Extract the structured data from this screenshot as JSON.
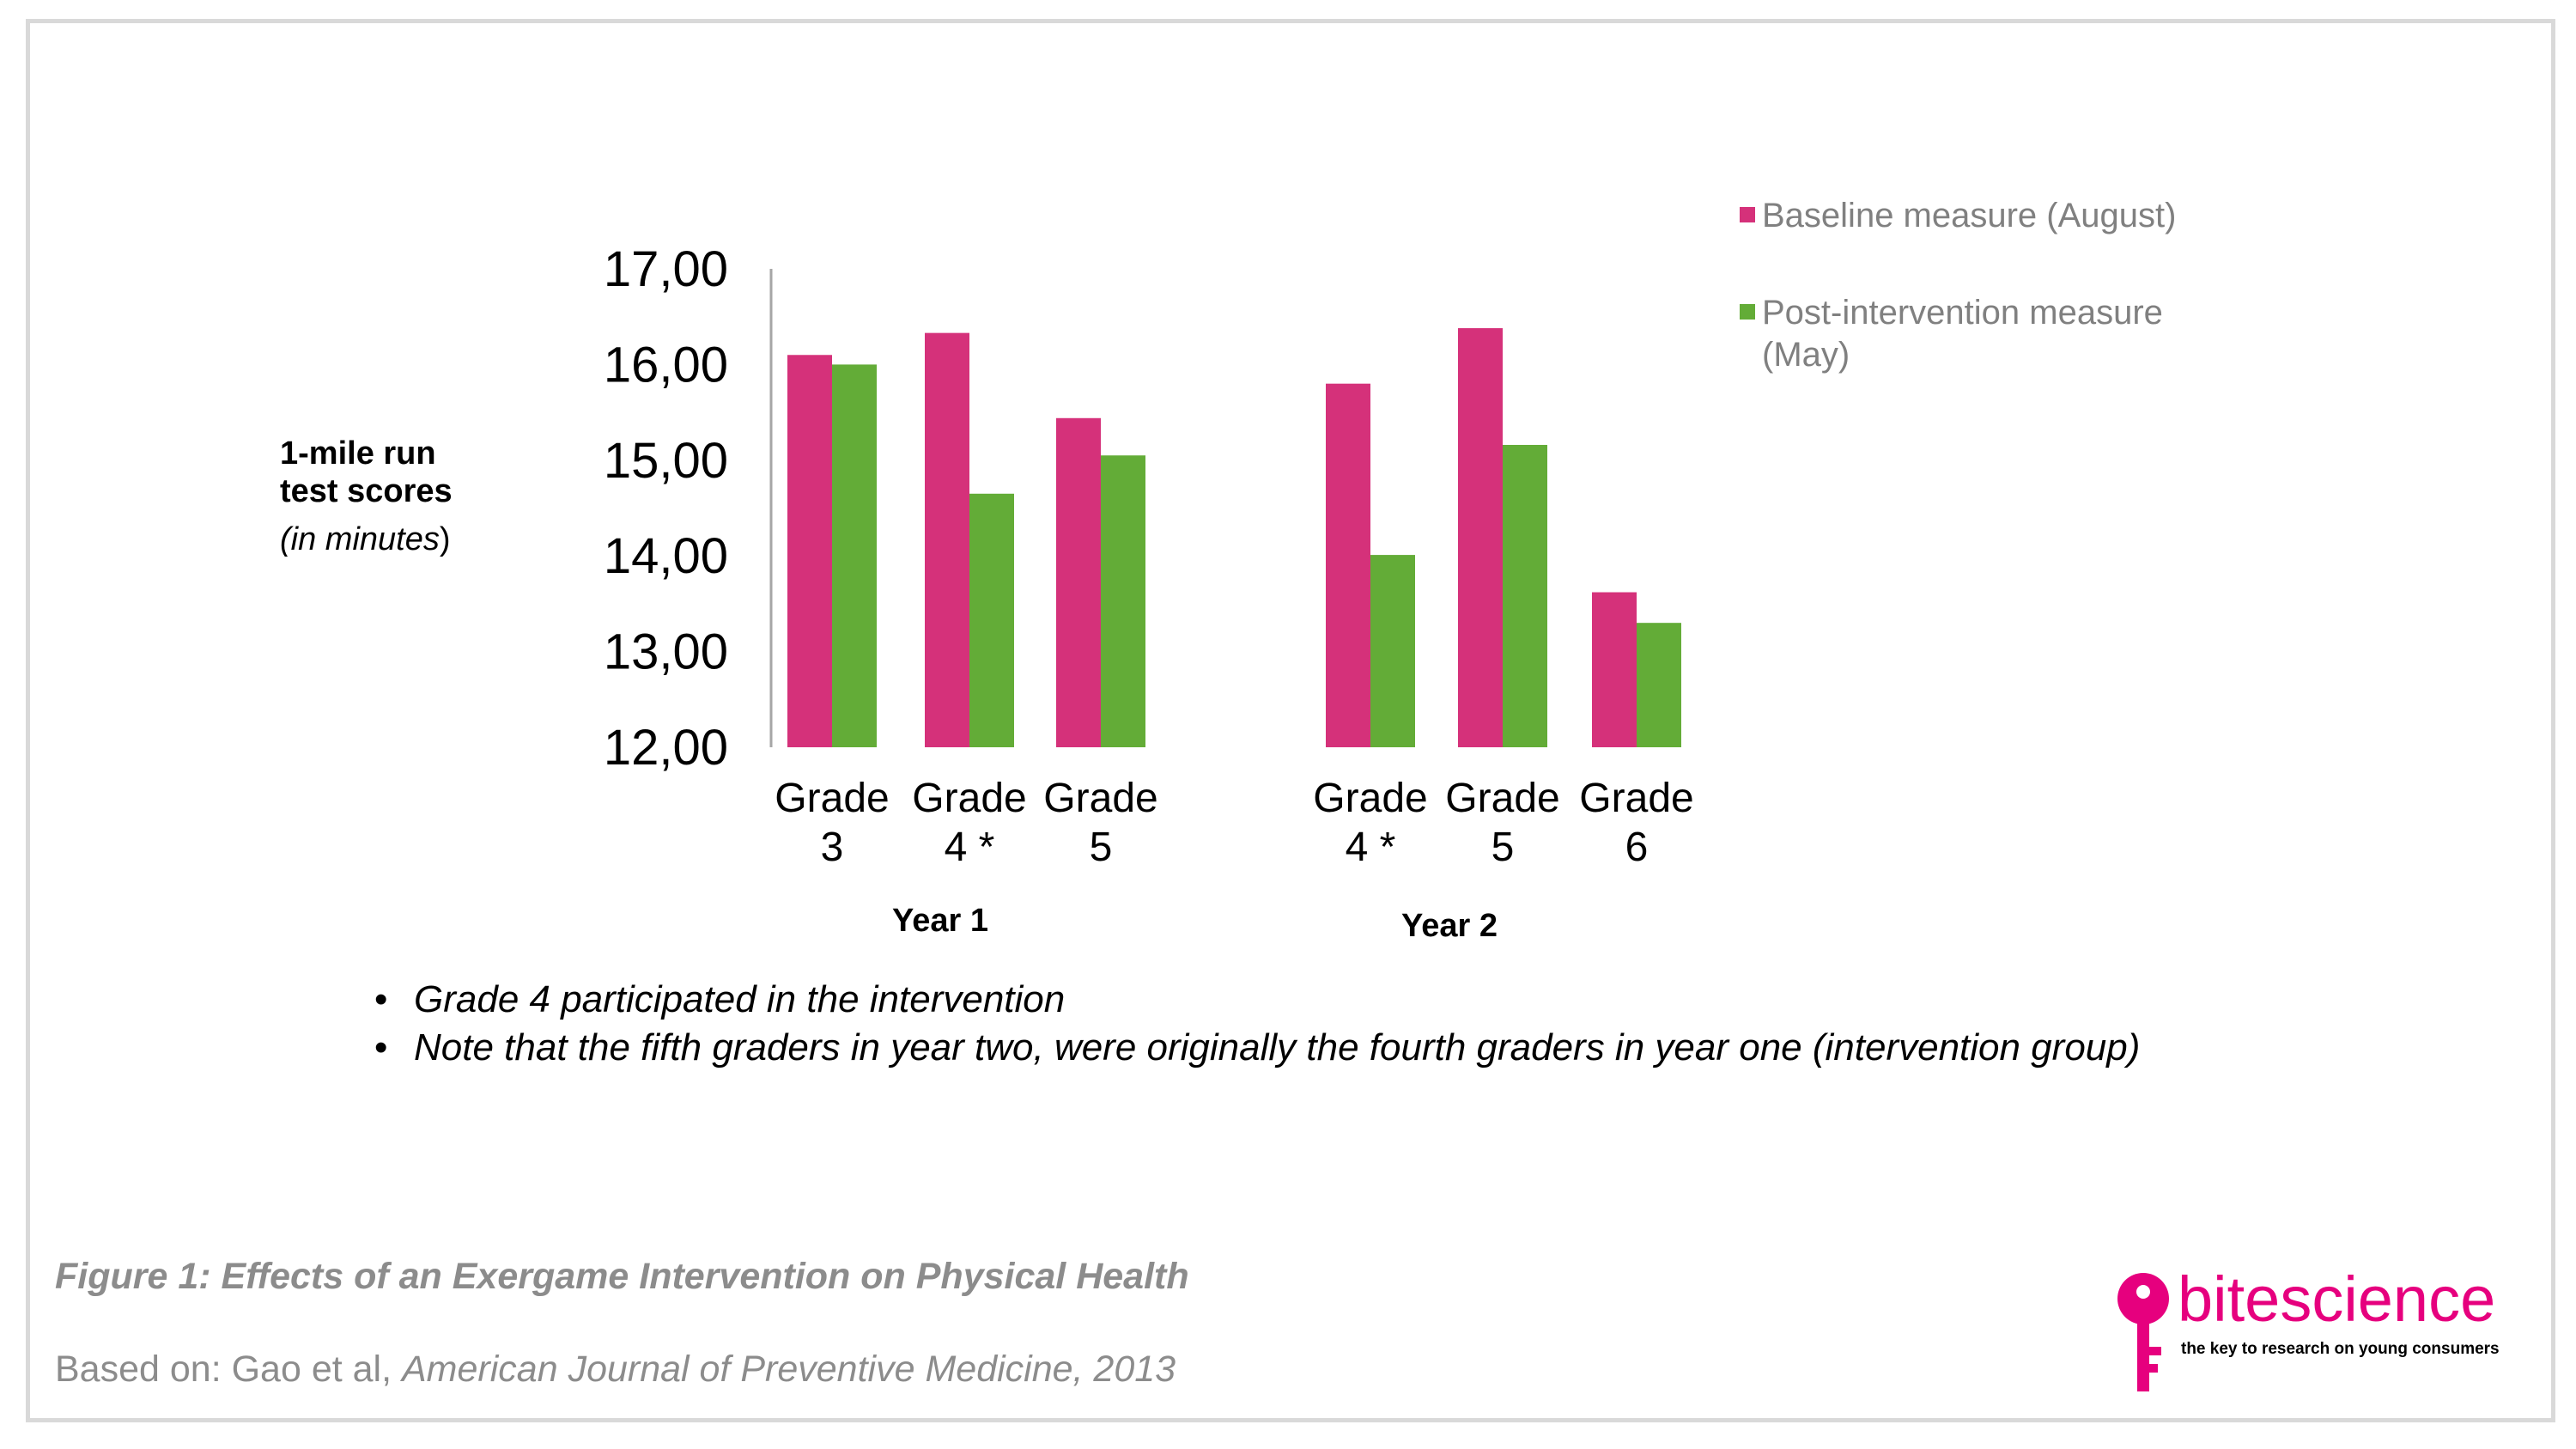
{
  "chart_data": {
    "type": "bar",
    "ylabel": {
      "line1": "1-mile run",
      "line2": "test scores",
      "line3_open": "(in minutes",
      "line3_close": ")"
    },
    "ylim": [
      12,
      17
    ],
    "yticks": [
      "12,00",
      "13,00",
      "14,00",
      "15,00",
      "16,00",
      "17,00"
    ],
    "grid": false,
    "legend_position": "top-right",
    "groups": [
      {
        "label": "Year 1",
        "categories": [
          {
            "line1": "Grade",
            "line2": "3"
          },
          {
            "line1": "Grade",
            "line2": "4 *"
          },
          {
            "line1": "Grade",
            "line2": "5"
          }
        ]
      },
      {
        "label": "Year 2",
        "categories": [
          {
            "line1": "Grade",
            "line2": "4 *"
          },
          {
            "line1": "Grade",
            "line2": "5"
          },
          {
            "line1": "Grade",
            "line2": "6"
          }
        ]
      }
    ],
    "series": [
      {
        "name": "Baseline measure (August)",
        "color": "#d5317a",
        "values": [
          16.1,
          16.33,
          15.44,
          15.8,
          16.38,
          13.62
        ]
      },
      {
        "name_line1": "Post-intervention measure",
        "name_line2": "(May)",
        "color": "#63ac37",
        "values": [
          16.0,
          14.65,
          15.05,
          14.01,
          15.16,
          13.3
        ]
      }
    ]
  },
  "notes": [
    "Grade 4 participated in the intervention",
    "Note that the fifth graders in year two, were originally the fourth graders in year one (intervention group)"
  ],
  "caption": "Figure 1: Effects of an Exergame Intervention on Physical Health",
  "source": {
    "prefix": "Based on: Gao et al, ",
    "journal": "American Journal of Preventive Medicine, 2013"
  },
  "logo": {
    "word_bite": "bite",
    "word_science": "science",
    "tagline": "the key to research on young consumers",
    "color": "#e6007e"
  }
}
